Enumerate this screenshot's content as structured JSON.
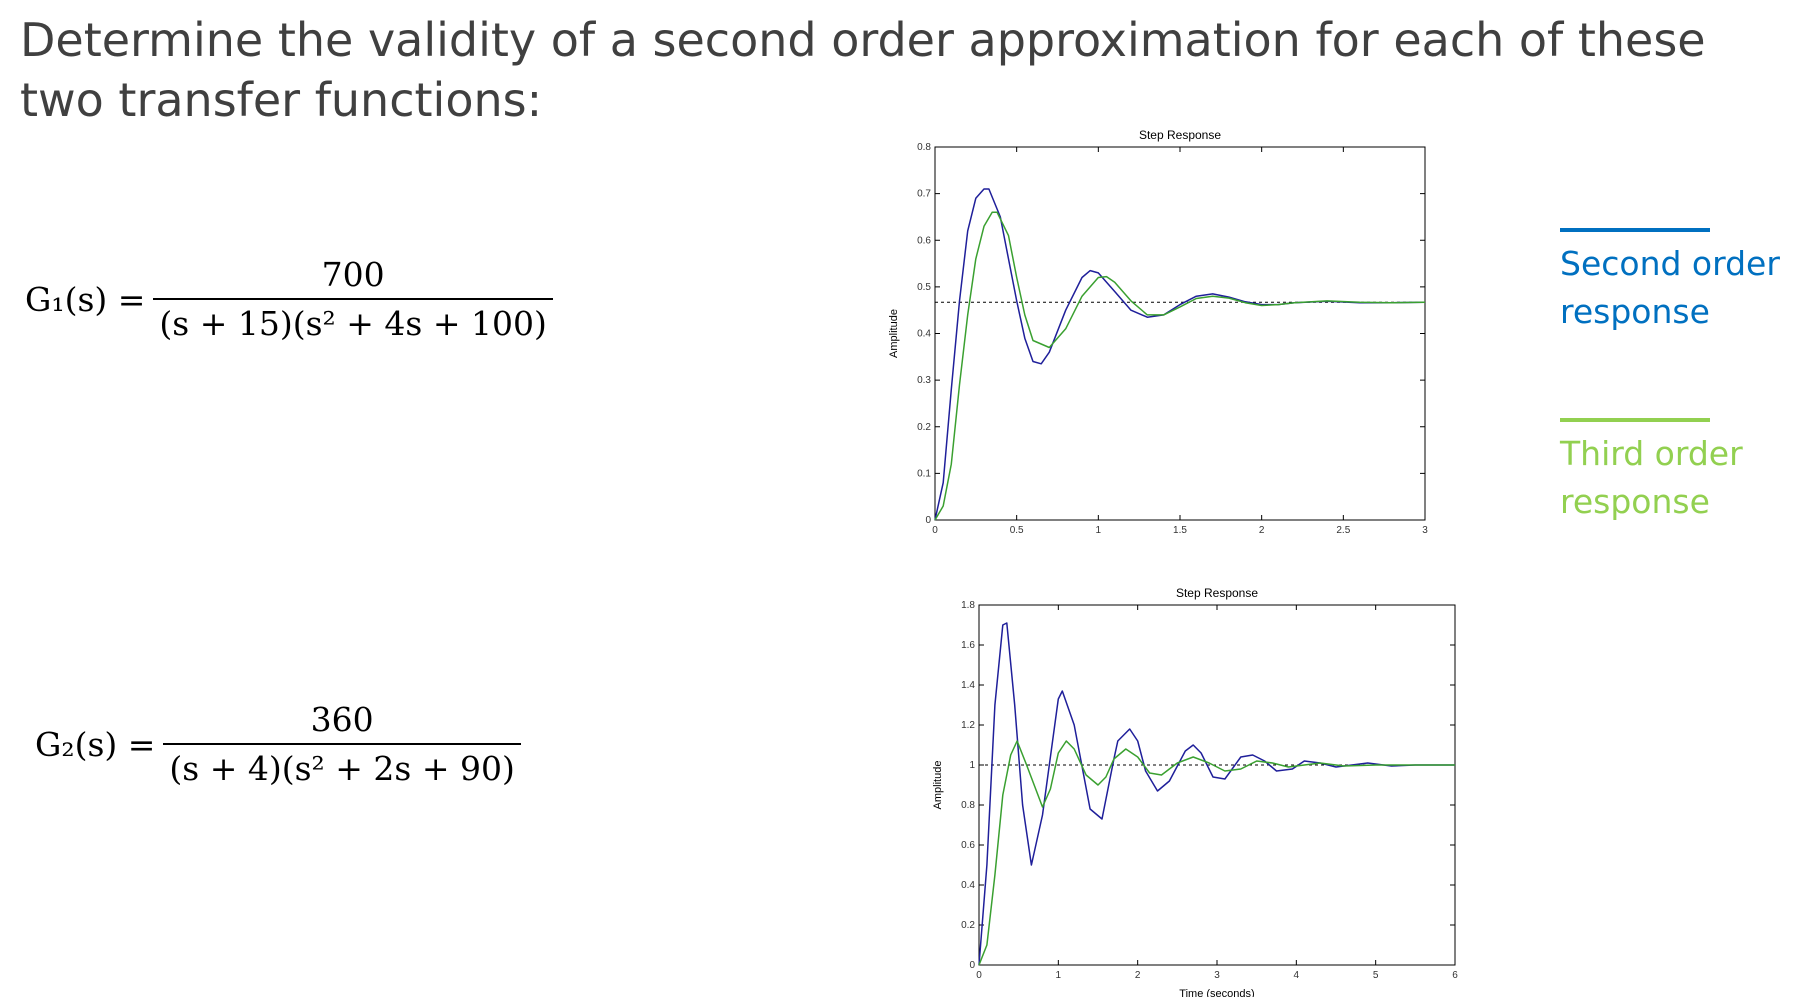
{
  "slide": {
    "title_lines": [
      "Determine the validity of a second order approximation for each of these",
      "two transfer functions:"
    ]
  },
  "equations": [
    {
      "lhs": "G₁(s) =",
      "numerator": "700",
      "denominator": "(s + 15)(s² + 4s + 100)"
    },
    {
      "lhs": "G₂(s) =",
      "numerator": "360",
      "denominator": "(s + 4)(s² + 2s + 90)"
    }
  ],
  "legend": {
    "second_order": {
      "lines": [
        "Second order",
        "response"
      ],
      "color": "#0070C0"
    },
    "third_order": {
      "lines": [
        "Third order",
        "response"
      ],
      "color": "#92D050"
    }
  },
  "chart_data": [
    {
      "type": "line",
      "title": "Step Response",
      "xlabel": "",
      "ylabel": "Amplitude",
      "xlim": [
        0,
        3
      ],
      "ylim": [
        0,
        0.8
      ],
      "xticks": [
        "0",
        "0.5",
        "1",
        "1.5",
        "2",
        "2.5",
        "3"
      ],
      "yticks": [
        "0",
        "0.1",
        "0.2",
        "0.3",
        "0.4",
        "0.5",
        "0.6",
        "0.7",
        "0.8"
      ],
      "grid": false,
      "final_value": 0.467,
      "series": [
        {
          "color": "#1f1f9a",
          "x": [
            0,
            0.05,
            0.1,
            0.15,
            0.2,
            0.25,
            0.3,
            0.33,
            0.4,
            0.5,
            0.55,
            0.6,
            0.65,
            0.7,
            0.8,
            0.9,
            0.95,
            1.0,
            1.1,
            1.2,
            1.3,
            1.4,
            1.5,
            1.6,
            1.7,
            1.8,
            1.9,
            2.0,
            2.1,
            2.2,
            2.4,
            2.6,
            2.8,
            3.0
          ],
          "y": [
            0,
            0.08,
            0.28,
            0.47,
            0.62,
            0.69,
            0.71,
            0.71,
            0.65,
            0.47,
            0.39,
            0.34,
            0.335,
            0.36,
            0.45,
            0.52,
            0.535,
            0.53,
            0.49,
            0.45,
            0.435,
            0.44,
            0.462,
            0.48,
            0.485,
            0.478,
            0.468,
            0.462,
            0.462,
            0.466,
            0.469,
            0.466,
            0.466,
            0.467
          ]
        },
        {
          "color": "#3aa030",
          "x": [
            0,
            0.05,
            0.1,
            0.15,
            0.2,
            0.25,
            0.3,
            0.35,
            0.38,
            0.45,
            0.5,
            0.55,
            0.6,
            0.7,
            0.8,
            0.9,
            1.0,
            1.05,
            1.1,
            1.2,
            1.3,
            1.4,
            1.5,
            1.6,
            1.7,
            1.8,
            1.9,
            2.0,
            2.1,
            2.2,
            2.4,
            2.6,
            2.8,
            3.0
          ],
          "y": [
            0,
            0.03,
            0.12,
            0.29,
            0.44,
            0.56,
            0.63,
            0.66,
            0.66,
            0.61,
            0.52,
            0.44,
            0.385,
            0.37,
            0.41,
            0.48,
            0.52,
            0.522,
            0.51,
            0.47,
            0.44,
            0.44,
            0.457,
            0.475,
            0.48,
            0.476,
            0.466,
            0.46,
            0.462,
            0.466,
            0.47,
            0.467,
            0.466,
            0.467
          ]
        }
      ]
    },
    {
      "type": "line",
      "title": "Step Response",
      "xlabel": "Time (seconds)",
      "ylabel": "Amplitude",
      "xlim": [
        0,
        6
      ],
      "ylim": [
        0,
        1.8
      ],
      "xticks": [
        "0",
        "1",
        "2",
        "3",
        "4",
        "5",
        "6"
      ],
      "yticks": [
        "0",
        "0.2",
        "0.4",
        "0.6",
        "0.8",
        "1",
        "1.2",
        "1.4",
        "1.6",
        "1.8"
      ],
      "grid": false,
      "final_value": 1.0,
      "series": [
        {
          "color": "#1f1f9a",
          "x": [
            0,
            0.1,
            0.2,
            0.3,
            0.35,
            0.45,
            0.55,
            0.66,
            0.8,
            1.0,
            1.05,
            1.2,
            1.4,
            1.55,
            1.7,
            1.75,
            1.9,
            2.0,
            2.1,
            2.25,
            2.4,
            2.6,
            2.7,
            2.8,
            2.95,
            3.1,
            3.3,
            3.45,
            3.6,
            3.75,
            3.95,
            4.1,
            4.3,
            4.5,
            4.7,
            4.9,
            5.2,
            5.5,
            6.0
          ],
          "y": [
            0,
            0.5,
            1.3,
            1.7,
            1.71,
            1.3,
            0.8,
            0.5,
            0.75,
            1.33,
            1.37,
            1.2,
            0.78,
            0.73,
            1.03,
            1.12,
            1.18,
            1.12,
            0.97,
            0.87,
            0.92,
            1.07,
            1.1,
            1.06,
            0.94,
            0.93,
            1.04,
            1.05,
            1.02,
            0.97,
            0.98,
            1.02,
            1.01,
            0.99,
            1.0,
            1.01,
            0.995,
            1.0,
            1.0
          ]
        },
        {
          "color": "#3aa030",
          "x": [
            0,
            0.1,
            0.2,
            0.3,
            0.4,
            0.48,
            0.6,
            0.8,
            0.9,
            1.0,
            1.1,
            1.2,
            1.35,
            1.5,
            1.6,
            1.7,
            1.85,
            2.0,
            2.15,
            2.3,
            2.5,
            2.7,
            2.9,
            3.1,
            3.3,
            3.5,
            3.7,
            3.9,
            4.1,
            4.3,
            4.6,
            5.0,
            5.5,
            6.0
          ],
          "y": [
            0,
            0.1,
            0.45,
            0.85,
            1.05,
            1.12,
            1.0,
            0.79,
            0.88,
            1.06,
            1.12,
            1.08,
            0.95,
            0.9,
            0.94,
            1.03,
            1.08,
            1.04,
            0.96,
            0.95,
            1.01,
            1.04,
            1.01,
            0.97,
            0.98,
            1.02,
            1.01,
            0.99,
            1.0,
            1.01,
            0.995,
            1.0,
            1.0,
            1.0
          ]
        }
      ]
    }
  ]
}
